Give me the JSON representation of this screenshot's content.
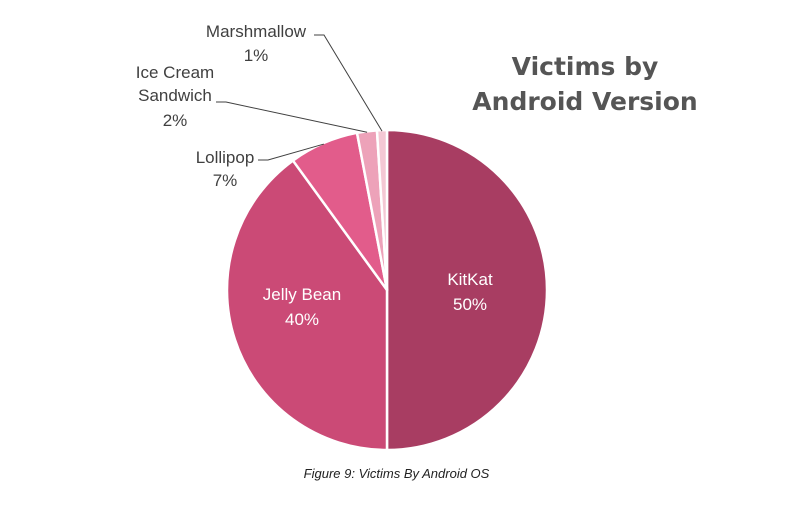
{
  "chart_data": {
    "type": "pie",
    "title": [
      "Victims by",
      "Android Version"
    ],
    "slices": [
      {
        "label": "KitKat",
        "value": 50,
        "display": "50%",
        "color": "#A83D62"
      },
      {
        "label": "Jelly Bean",
        "value": 40,
        "display": "40%",
        "color": "#CB4A76"
      },
      {
        "label": "Lollipop",
        "value": 7,
        "display": "7%",
        "color": "#E25C8B"
      },
      {
        "label": "Ice Cream Sandwich",
        "value": 2,
        "display": "2%",
        "color": "#EDA2B9"
      },
      {
        "label": "Marshmallow",
        "value": 1,
        "display": "1%",
        "color": "#F4C8D4"
      }
    ]
  },
  "caption": "Figure 9: Victims By Android OS"
}
